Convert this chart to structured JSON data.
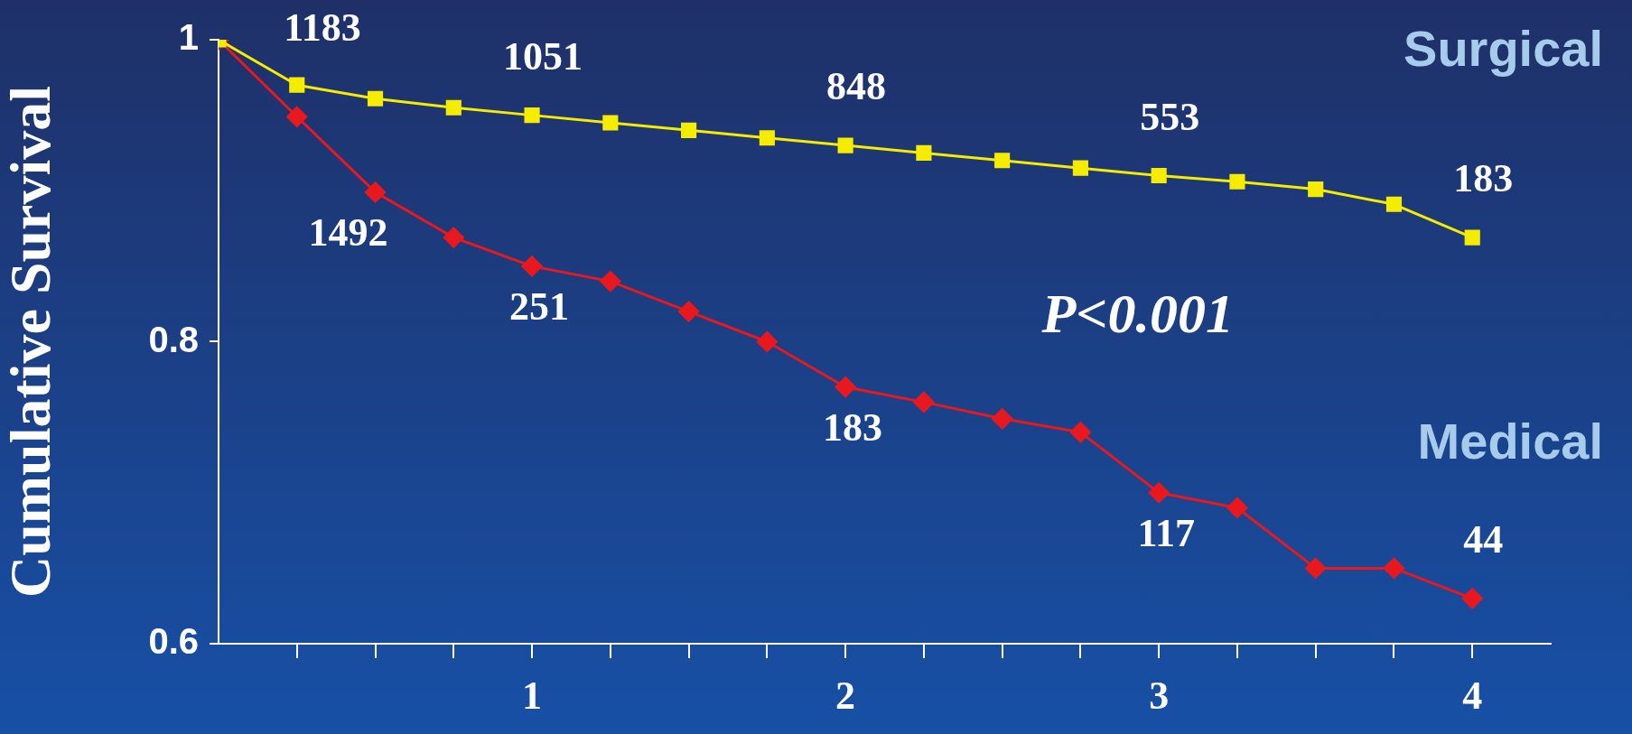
{
  "chart_data": {
    "type": "line",
    "ylabel": "Cumulative Survival",
    "x": [
      0,
      0.25,
      0.5,
      0.75,
      1,
      1.25,
      1.5,
      1.75,
      2,
      2.25,
      2.5,
      2.75,
      3,
      3.25,
      3.5,
      3.75,
      4
    ],
    "series": [
      {
        "name": "Surgical",
        "color": "#f5ec00",
        "marker": "square",
        "values": [
          1.0,
          0.97,
          0.961,
          0.955,
          0.95,
          0.945,
          0.94,
          0.935,
          0.93,
          0.925,
          0.92,
          0.915,
          0.91,
          0.906,
          0.901,
          0.891,
          0.869
        ]
      },
      {
        "name": "Medical",
        "color": "#e8191e",
        "marker": "diamond",
        "values": [
          1.0,
          0.949,
          0.899,
          0.869,
          0.85,
          0.84,
          0.82,
          0.8,
          0.77,
          0.76,
          0.749,
          0.74,
          0.7,
          0.69,
          0.65,
          0.65,
          0.63
        ]
      }
    ],
    "xlim": [
      0,
      4.25
    ],
    "ylim": [
      0.6,
      1
    ],
    "xticks": [
      {
        "value": 0.25,
        "label": null
      },
      {
        "value": 0.5,
        "label": null
      },
      {
        "value": 0.75,
        "label": null
      },
      1,
      {
        "value": 1.25,
        "label": null
      },
      {
        "value": 1.5,
        "label": null
      },
      {
        "value": 1.75,
        "label": null
      },
      2,
      {
        "value": 2.25,
        "label": null
      },
      {
        "value": 2.5,
        "label": null
      },
      {
        "value": 2.75,
        "label": null
      },
      3,
      {
        "value": 3.25,
        "label": null
      },
      {
        "value": 3.5,
        "label": null
      },
      {
        "value": 3.75,
        "label": null
      },
      4
    ],
    "yticks": [
      0.6,
      0.8,
      1
    ],
    "grid": false,
    "legend": false,
    "line_style": "solid",
    "annotations": [
      {
        "text": "1183",
        "x": 0,
        "y": 1.0
      },
      {
        "text": "1051",
        "x": 1,
        "y": 0.95
      },
      {
        "text": "848",
        "x": 2,
        "y": 0.93
      },
      {
        "text": "553",
        "x": 3,
        "y": 0.91
      },
      {
        "text": "183",
        "x": 4,
        "y": 0.869
      },
      {
        "text": "1492",
        "x": 0.5,
        "y": 0.899
      },
      {
        "text": "251",
        "x": 1,
        "y": 0.85
      },
      {
        "text": "183",
        "x": 2,
        "y": 0.77
      },
      {
        "text": "117",
        "x": 3,
        "y": 0.7
      },
      {
        "text": "44",
        "x": 4,
        "y": 0.63
      },
      "P<0.001"
    ]
  }
}
